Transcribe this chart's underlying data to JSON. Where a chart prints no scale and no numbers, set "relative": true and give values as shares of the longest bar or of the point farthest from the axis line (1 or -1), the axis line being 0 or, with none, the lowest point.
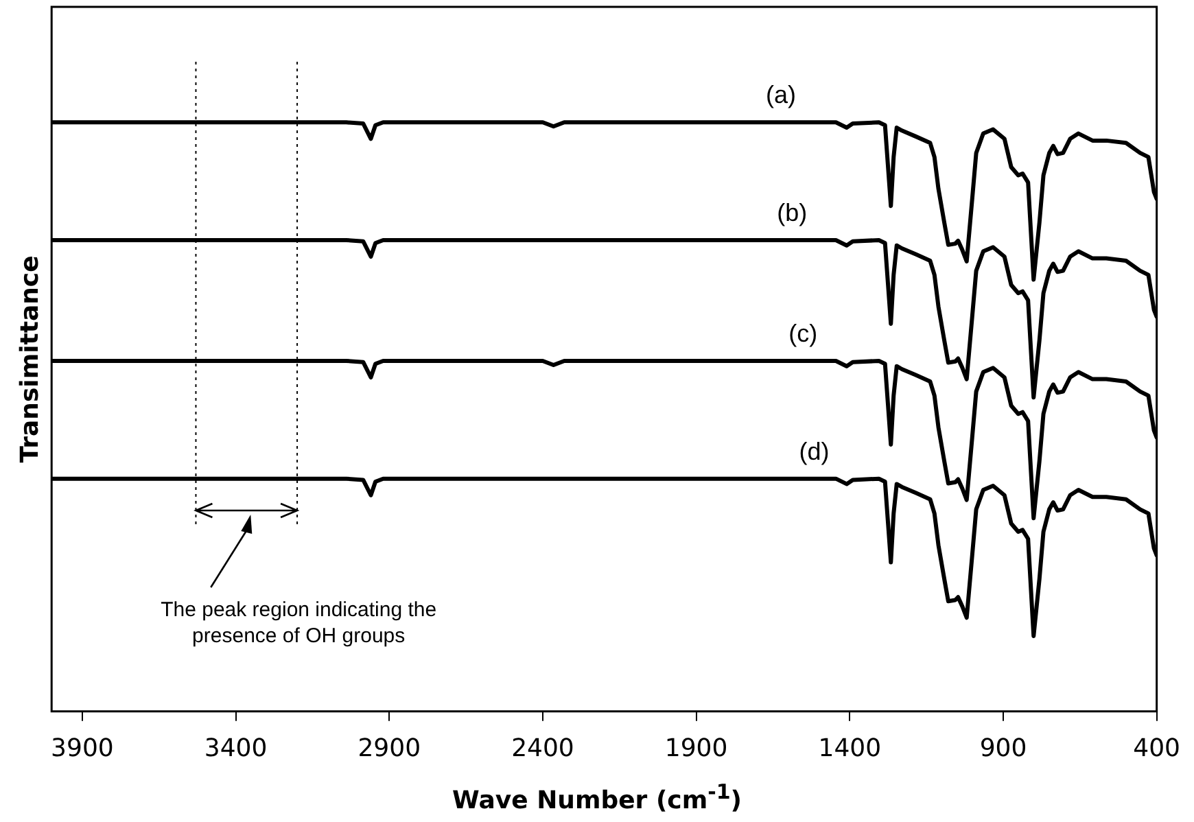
{
  "chart_data": {
    "type": "line",
    "relative": true,
    "ylabel": "Transimittance",
    "xlabel": "Wave Number  (cm$^{-1}$)",
    "xlim": [
      4000,
      400
    ],
    "xticks": [
      3900,
      3400,
      2900,
      2400,
      1900,
      1400,
      900,
      400
    ],
    "grid": false,
    "legend": false,
    "marker": "none",
    "line_style": "solid",
    "x": [
      4000,
      3040,
      2985,
      2960,
      2945,
      2920,
      2880,
      2400,
      2365,
      2330,
      1445,
      1410,
      1390,
      1305,
      1285,
      1266,
      1257,
      1247,
      1230,
      1185,
      1138,
      1124,
      1111,
      1092,
      1079,
      1056,
      1047,
      1033,
      1019,
      1001,
      988,
      965,
      933,
      896,
      874,
      851,
      837,
      819,
      801,
      782,
      769,
      750,
      737,
      723,
      705,
      682,
      655,
      609,
      564,
      500,
      454,
      427,
      409,
      400
    ],
    "series": [
      {
        "name": "(a)",
        "color": "#000000",
        "values": [
          1,
          1,
          0.998,
          0.972,
          0.995,
          1,
          1,
          1,
          0.993,
          1,
          1,
          0.991,
          0.998,
          1,
          0.995,
          0.858,
          0.941,
          0.991,
          0.986,
          0.976,
          0.965,
          0.941,
          0.887,
          0.83,
          0.792,
          0.794,
          0.799,
          0.783,
          0.764,
          0.87,
          0.948,
          0.981,
          0.988,
          0.972,
          0.924,
          0.91,
          0.913,
          0.898,
          0.733,
          0.83,
          0.91,
          0.948,
          0.96,
          0.946,
          0.948,
          0.972,
          0.981,
          0.969,
          0.969,
          0.965,
          0.948,
          0.941,
          0.882,
          0.87
        ]
      },
      {
        "name": "(b)",
        "color": "#000000",
        "values": [
          0.8,
          0.8,
          0.798,
          0.772,
          0.795,
          0.8,
          0.8,
          0.8,
          0.8,
          0.8,
          0.8,
          0.791,
          0.798,
          0.8,
          0.795,
          0.658,
          0.741,
          0.791,
          0.786,
          0.776,
          0.765,
          0.741,
          0.687,
          0.63,
          0.592,
          0.594,
          0.599,
          0.583,
          0.564,
          0.67,
          0.748,
          0.781,
          0.788,
          0.772,
          0.724,
          0.71,
          0.713,
          0.698,
          0.533,
          0.63,
          0.71,
          0.748,
          0.76,
          0.746,
          0.748,
          0.772,
          0.781,
          0.769,
          0.769,
          0.765,
          0.748,
          0.741,
          0.682,
          0.67
        ]
      },
      {
        "name": "(c)",
        "color": "#000000",
        "values": [
          0.595,
          0.595,
          0.593,
          0.567,
          0.59,
          0.595,
          0.595,
          0.595,
          0.588,
          0.595,
          0.595,
          0.586,
          0.593,
          0.595,
          0.59,
          0.453,
          0.536,
          0.586,
          0.581,
          0.571,
          0.56,
          0.536,
          0.482,
          0.425,
          0.387,
          0.389,
          0.394,
          0.378,
          0.359,
          0.465,
          0.543,
          0.576,
          0.583,
          0.567,
          0.519,
          0.505,
          0.508,
          0.493,
          0.328,
          0.425,
          0.505,
          0.543,
          0.555,
          0.541,
          0.543,
          0.567,
          0.576,
          0.564,
          0.564,
          0.56,
          0.543,
          0.536,
          0.477,
          0.465
        ]
      },
      {
        "name": "(d)",
        "color": "#000000",
        "values": [
          0.395,
          0.395,
          0.393,
          0.367,
          0.39,
          0.395,
          0.395,
          0.395,
          0.395,
          0.395,
          0.395,
          0.386,
          0.393,
          0.395,
          0.39,
          0.253,
          0.336,
          0.386,
          0.381,
          0.371,
          0.36,
          0.336,
          0.282,
          0.225,
          0.187,
          0.189,
          0.194,
          0.178,
          0.159,
          0.265,
          0.343,
          0.376,
          0.383,
          0.367,
          0.319,
          0.305,
          0.308,
          0.293,
          0.128,
          0.225,
          0.305,
          0.343,
          0.355,
          0.341,
          0.343,
          0.367,
          0.376,
          0.364,
          0.364,
          0.36,
          0.343,
          0.336,
          0.277,
          0.265
        ]
      }
    ],
    "ref_lines": [
      {
        "axis": "x",
        "value": 3530,
        "line_style": "dotted",
        "color": "#000000"
      },
      {
        "axis": "x",
        "value": 3200,
        "line_style": "dotted",
        "color": "#000000"
      }
    ],
    "annotations": [
      "The peak region indicating the presence of OH groups"
    ]
  }
}
